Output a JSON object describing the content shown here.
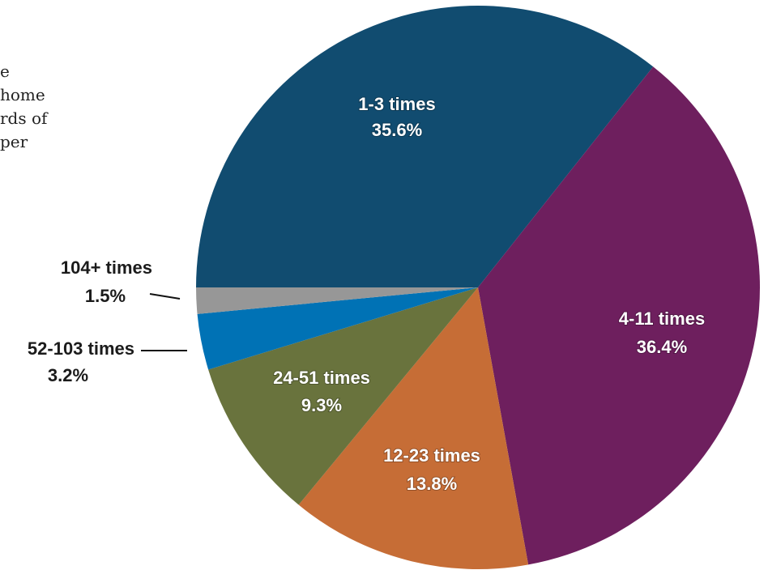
{
  "intro_text": [
    "e",
    " home",
    "rds of",
    "per"
  ],
  "chart_data": {
    "type": "pie",
    "title": "",
    "slices": [
      {
        "label": "1-3 times",
        "value_label": "35.6%",
        "value": 35.6,
        "color": "#114c70"
      },
      {
        "label": "4-11 times",
        "value_label": "36.4%",
        "value": 36.4,
        "color": "#6e1f5e"
      },
      {
        "label": "12-23 times",
        "value_label": "13.8%",
        "value": 13.8,
        "color": "#c66d36"
      },
      {
        "label": "24-51 times",
        "value_label": "9.3%",
        "value": 9.3,
        "color": "#69733d"
      },
      {
        "label": "52-103 times",
        "value_label": "3.2%",
        "value": 3.2,
        "color": "#0072b5"
      },
      {
        "label": "104+ times",
        "value_label": "1.5%",
        "value": 1.5,
        "color": "#979797"
      }
    ]
  }
}
